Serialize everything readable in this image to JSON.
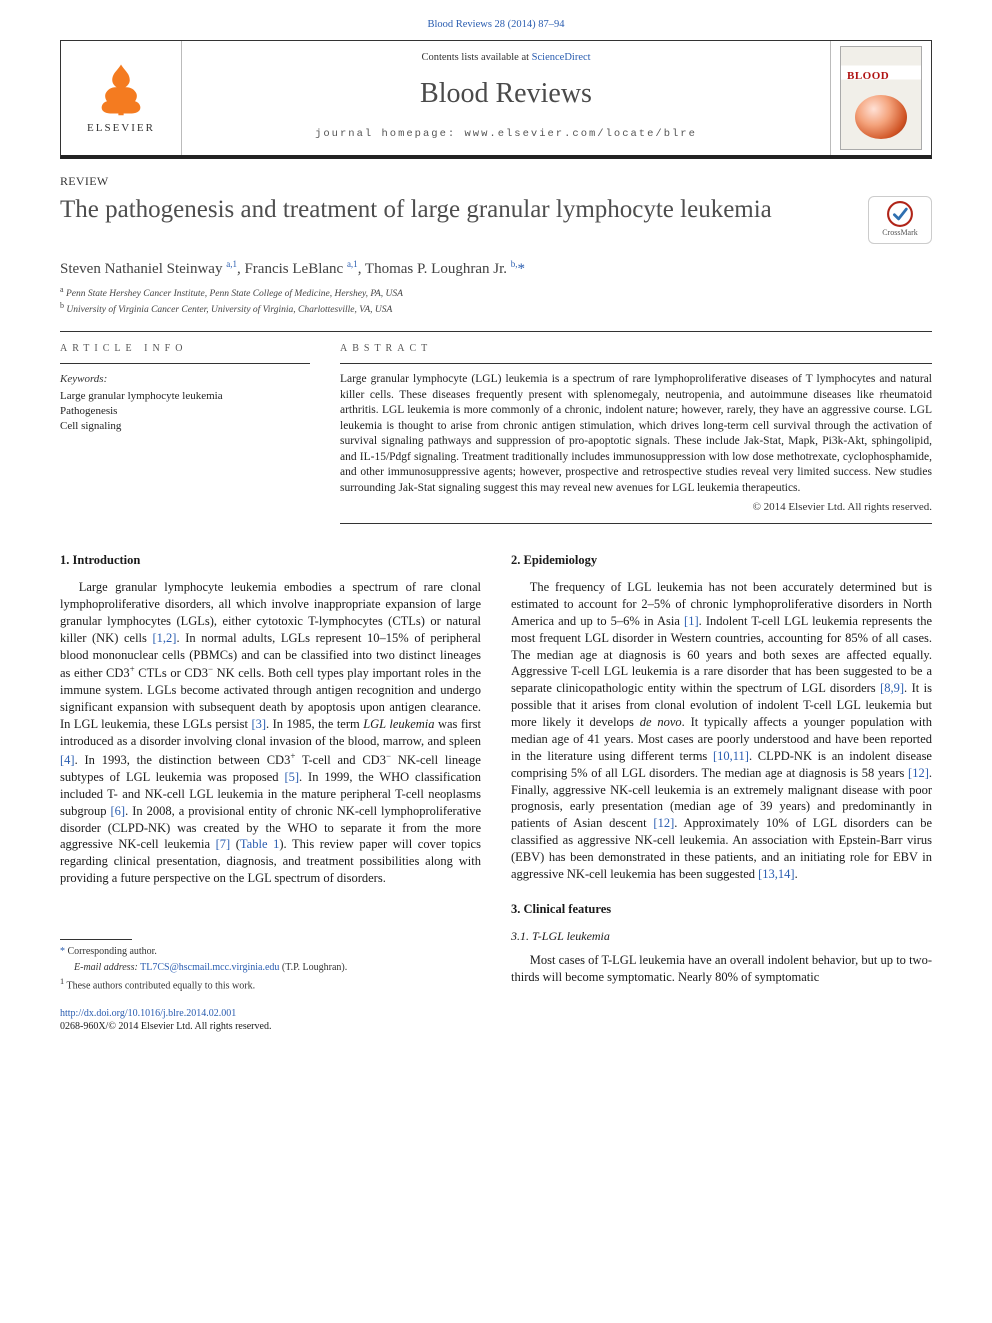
{
  "colors": {
    "link": "#2a5db0",
    "text": "#1a1a1a",
    "heading_gray": "#4e4e4e",
    "elsevier_orange": "#f47b20",
    "rule": "#333333",
    "cover_red": "#b01414",
    "background": "#ffffff"
  },
  "typography": {
    "body_font": "Times New Roman / Georgia, serif",
    "body_size_pt": 9.4,
    "title_size_pt": 19,
    "journal_name_size_pt": 21,
    "letterspaced_size_pt": 7.5
  },
  "citation": {
    "label": "Blood Reviews 28 (2014) 87–94"
  },
  "masthead": {
    "contents_line_prefix": "Contents lists available at ",
    "contents_link_text": "ScienceDirect",
    "journal_name": "Blood Reviews",
    "homepage_prefix": "journal homepage: ",
    "homepage": "www.elsevier.com/locate/blre",
    "publisher_word": "ELSEVIER",
    "publisher_icon": "tree-icon",
    "cover_label": "BLOOD",
    "cover_icon": "journal-cover-thumb"
  },
  "article": {
    "type": "REVIEW",
    "title": "The pathogenesis and treatment of large granular lymphocyte leukemia",
    "crossmark_label": "CrossMark",
    "authors_html": "Steven Nathaniel Steinway <sup>a,1</sup>, Francis LeBlanc <sup>a,1</sup>, Thomas P. Loughran Jr. <sup>b,</sup><span class=\"star\">*</span>",
    "affiliations": [
      {
        "key": "a",
        "text": "Penn State Hershey Cancer Institute, Penn State College of Medicine, Hershey, PA, USA"
      },
      {
        "key": "b",
        "text": "University of Virginia Cancer Center, University of Virginia, Charlottesville, VA, USA"
      }
    ]
  },
  "info": {
    "heading": "ARTICLE INFO",
    "keywords_label": "Keywords:",
    "keywords": [
      "Large granular lymphocyte leukemia",
      "Pathogenesis",
      "Cell signaling"
    ]
  },
  "abstract": {
    "heading": "ABSTRACT",
    "text": "Large granular lymphocyte (LGL) leukemia is a spectrum of rare lymphoproliferative diseases of T lymphocytes and natural killer cells. These diseases frequently present with splenomegaly, neutropenia, and autoimmune diseases like rheumatoid arthritis. LGL leukemia is more commonly of a chronic, indolent nature; however, rarely, they have an aggressive course. LGL leukemia is thought to arise from chronic antigen stimulation, which drives long-term cell survival through the activation of survival signaling pathways and suppression of pro-apoptotic signals. These include Jak-Stat, Mapk, Pi3k-Akt, sphingolipid, and IL-15/Pdgf signaling. Treatment traditionally includes immunosuppression with low dose methotrexate, cyclophosphamide, and other immunosuppressive agents; however, prospective and retrospective studies reveal very limited success. New studies surrounding Jak-Stat signaling suggest this may reveal new avenues for LGL leukemia therapeutics.",
    "copyright": "© 2014 Elsevier Ltd. All rights reserved."
  },
  "sections": {
    "intro": {
      "number": "1.",
      "title": "Introduction",
      "paragraph_html": "Large granular lymphocyte leukemia embodies a spectrum of rare clonal lymphoproliferative disorders, all which involve inappropriate expansion of large granular lymphocytes (LGLs), either cytotoxic T-lymphocytes (CTLs) or natural killer (NK) cells <span class=\"ref-link\">[1,2]</span>. In normal adults, LGLs represent 10–15% of peripheral blood mononuclear cells (PBMCs) and can be classified into two distinct lineages as either CD3<sup class=\"cd3p\">+</sup> CTLs or CD3<sup class=\"cd3m\">−</sup> NK cells. Both cell types play important roles in the immune system. LGLs become activated through antigen recognition and undergo significant expansion with subsequent death by apoptosis upon antigen clearance. In LGL leukemia, these LGLs persist <span class=\"ref-link\">[3]</span>. In 1985, the term <i>LGL leukemia</i> was first introduced as a disorder involving clonal invasion of the blood, marrow, and spleen <span class=\"ref-link\">[4]</span>. In 1993, the distinction between CD3<sup class=\"cd3p\">+</sup> T-cell and CD3<sup class=\"cd3m\">−</sup> NK-cell lineage subtypes of LGL leukemia was proposed <span class=\"ref-link\">[5]</span>. In 1999, the WHO classification included T- and NK-cell LGL leukemia in the mature peripheral T-cell neoplasms subgroup <span class=\"ref-link\">[6]</span>. In 2008, a provisional entity of chronic NK-cell lymphoproliferative disorder (CLPD-NK) was created by the WHO to separate it from the more aggressive NK-cell leukemia <span class=\"ref-link\">[7]</span> (<span class=\"ref-link\">Table 1</span>). This review paper will cover topics regarding clinical presentation, diagnosis, and treatment possibilities along with providing a future perspective on the LGL spectrum of disorders."
    },
    "epi": {
      "number": "2.",
      "title": "Epidemiology",
      "paragraph_html": "The frequency of LGL leukemia has not been accurately determined but is estimated to account for 2–5% of chronic lymphoproliferative disorders in North America and up to 5–6% in Asia <span class=\"ref-link\">[1]</span>. Indolent T-cell LGL leukemia represents the most frequent LGL disorder in Western countries, accounting for 85% of all cases. The median age at diagnosis is 60 years and both sexes are affected equally. Aggressive T-cell LGL leukemia is a rare disorder that has been suggested to be a separate clinicopathologic entity within the spectrum of LGL disorders <span class=\"ref-link\">[8,9]</span>. It is possible that it arises from clonal evolution of indolent T-cell LGL leukemia but more likely it develops <i>de novo</i>. It typically affects a younger population with median age of 41 years. Most cases are poorly understood and have been reported in the literature using different terms <span class=\"ref-link\">[10,11]</span>. CLPD-NK is an indolent disease comprising 5% of all LGL disorders. The median age at diagnosis is 58 years <span class=\"ref-link\">[12]</span>. Finally, aggressive NK-cell leukemia is an extremely malignant disease with poor prognosis, early presentation (median age of 39 years) and predominantly in patients of Asian descent <span class=\"ref-link\">[12]</span>. Approximately 10% of LGL disorders can be classified as aggressive NK-cell leukemia. An association with Epstein-Barr virus (EBV) has been demonstrated in these patients, and an initiating role for EBV in aggressive NK-cell leukemia has been suggested <span class=\"ref-link\">[13,14]</span>."
    },
    "clinical": {
      "number": "3.",
      "title": "Clinical features",
      "sub": {
        "number": "3.1.",
        "title": "T-LGL leukemia",
        "paragraph_html": "Most cases of T-LGL leukemia have an overall indolent behavior, but up to two-thirds will become symptomatic. Nearly 80% of symptomatic"
      }
    }
  },
  "footnotes": {
    "corresponding": "Corresponding author.",
    "email_label": "E-mail address:",
    "email": "TL7CS@hscmail.mcc.virginia.edu",
    "email_author": "(T.P. Loughran).",
    "equal": "These authors contributed equally to this work."
  },
  "doi": {
    "url": "http://dx.doi.org/10.1016/j.blre.2014.02.001",
    "issn_line": "0268-960X/© 2014 Elsevier Ltd. All rights reserved."
  }
}
